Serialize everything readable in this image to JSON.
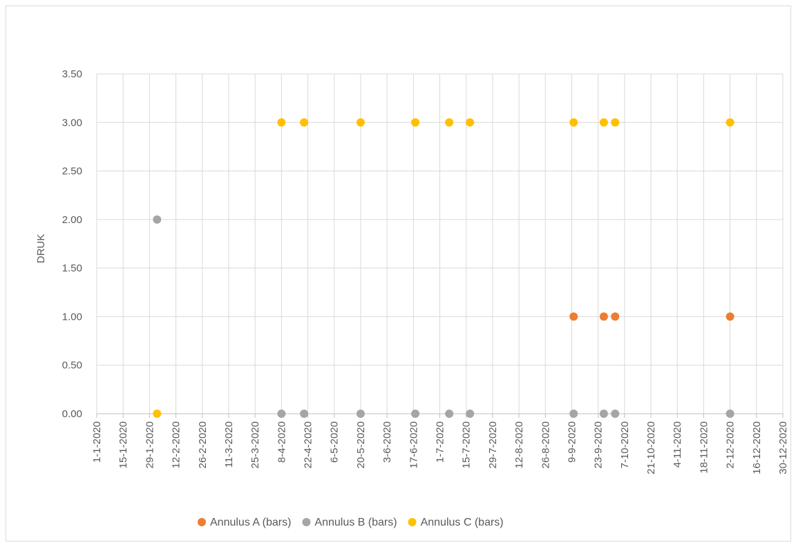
{
  "chart_data": {
    "type": "scatter",
    "title": "",
    "xlabel": "",
    "ylabel": "DRUK",
    "ylim": [
      0,
      3.5
    ],
    "y_ticks": [
      "0.00",
      "0.50",
      "1.00",
      "1.50",
      "2.00",
      "2.50",
      "3.00",
      "3.50"
    ],
    "xlim": [
      "2020-01-01",
      "2020-12-30"
    ],
    "x_ticks": [
      {
        "date": "2020-01-01",
        "label": "1-1-2020"
      },
      {
        "date": "2020-01-15",
        "label": "15-1-2020"
      },
      {
        "date": "2020-01-29",
        "label": "29-1-2020"
      },
      {
        "date": "2020-02-12",
        "label": "12-2-2020"
      },
      {
        "date": "2020-02-26",
        "label": "26-2-2020"
      },
      {
        "date": "2020-03-11",
        "label": "11-3-2020"
      },
      {
        "date": "2020-03-25",
        "label": "25-3-2020"
      },
      {
        "date": "2020-04-08",
        "label": "8-4-2020"
      },
      {
        "date": "2020-04-22",
        "label": "22-4-2020"
      },
      {
        "date": "2020-05-06",
        "label": "6-5-2020"
      },
      {
        "date": "2020-05-20",
        "label": "20-5-2020"
      },
      {
        "date": "2020-06-03",
        "label": "3-6-2020"
      },
      {
        "date": "2020-06-17",
        "label": "17-6-2020"
      },
      {
        "date": "2020-07-01",
        "label": "1-7-2020"
      },
      {
        "date": "2020-07-15",
        "label": "15-7-2020"
      },
      {
        "date": "2020-07-29",
        "label": "29-7-2020"
      },
      {
        "date": "2020-08-12",
        "label": "12-8-2020"
      },
      {
        "date": "2020-08-26",
        "label": "26-8-2020"
      },
      {
        "date": "2020-09-09",
        "label": "9-9-2020"
      },
      {
        "date": "2020-09-23",
        "label": "23-9-2020"
      },
      {
        "date": "2020-10-07",
        "label": "7-10-2020"
      },
      {
        "date": "2020-10-21",
        "label": "21-10-2020"
      },
      {
        "date": "2020-11-04",
        "label": "4-11-2020"
      },
      {
        "date": "2020-11-18",
        "label": "18-11-2020"
      },
      {
        "date": "2020-12-02",
        "label": "2-12-2020"
      },
      {
        "date": "2020-12-16",
        "label": "16-12-2020"
      },
      {
        "date": "2020-12-30",
        "label": "30-12-2020"
      }
    ],
    "grid": true,
    "legend_position": "bottom",
    "series": [
      {
        "name": "Annulus A (bars)",
        "color": "#ED7D31",
        "points": [
          {
            "x": "2020-09-10",
            "y": 1
          },
          {
            "x": "2020-09-26",
            "y": 1
          },
          {
            "x": "2020-10-02",
            "y": 1
          },
          {
            "x": "2020-12-02",
            "y": 1
          }
        ]
      },
      {
        "name": "Annulus B (bars)",
        "color": "#A5A5A5",
        "points": [
          {
            "x": "2020-02-02",
            "y": 2
          },
          {
            "x": "2020-04-08",
            "y": 0
          },
          {
            "x": "2020-04-20",
            "y": 0
          },
          {
            "x": "2020-05-20",
            "y": 0
          },
          {
            "x": "2020-06-18",
            "y": 0
          },
          {
            "x": "2020-07-06",
            "y": 0
          },
          {
            "x": "2020-07-17",
            "y": 0
          },
          {
            "x": "2020-09-10",
            "y": 0
          },
          {
            "x": "2020-09-26",
            "y": 0
          },
          {
            "x": "2020-10-02",
            "y": 0
          },
          {
            "x": "2020-12-02",
            "y": 0
          }
        ]
      },
      {
        "name": "Annulus C (bars)",
        "color": "#FFC000",
        "points": [
          {
            "x": "2020-02-02",
            "y": 0
          },
          {
            "x": "2020-04-08",
            "y": 3
          },
          {
            "x": "2020-04-20",
            "y": 3
          },
          {
            "x": "2020-05-20",
            "y": 3
          },
          {
            "x": "2020-06-18",
            "y": 3
          },
          {
            "x": "2020-07-06",
            "y": 3
          },
          {
            "x": "2020-07-17",
            "y": 3
          },
          {
            "x": "2020-09-10",
            "y": 3
          },
          {
            "x": "2020-09-26",
            "y": 3
          },
          {
            "x": "2020-10-02",
            "y": 3
          },
          {
            "x": "2020-12-02",
            "y": 3
          }
        ]
      }
    ]
  }
}
